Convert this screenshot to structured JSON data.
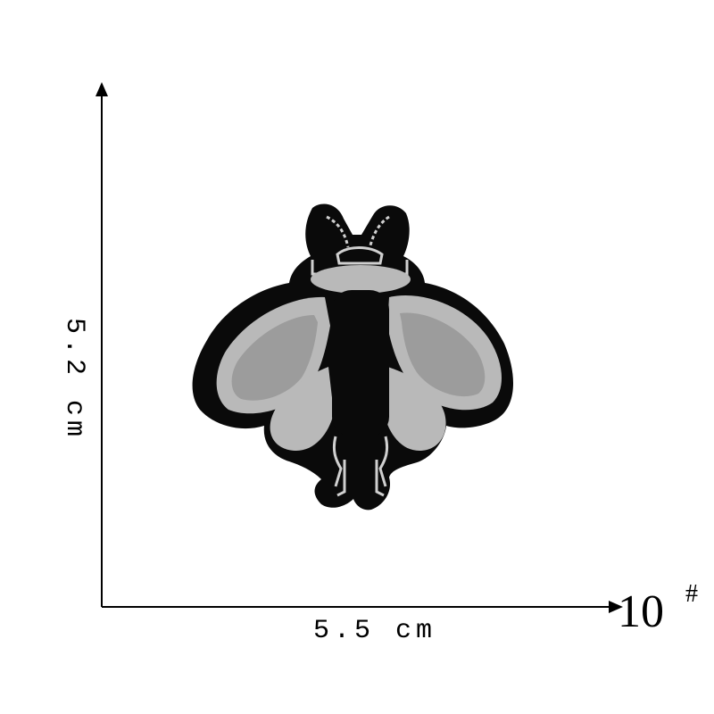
{
  "dimensions": {
    "width_label": "5.5 cm",
    "height_label": "5.2 cm"
  },
  "size_code": {
    "number": "10",
    "mark": "#"
  },
  "patch": {
    "subject": "bee-embroidered-patch",
    "colors": {
      "border": "#0a0a0a",
      "wing": "#b9b9b9",
      "wing_inner": "#9c9c9c",
      "stitch": "#d0d0d0"
    }
  }
}
